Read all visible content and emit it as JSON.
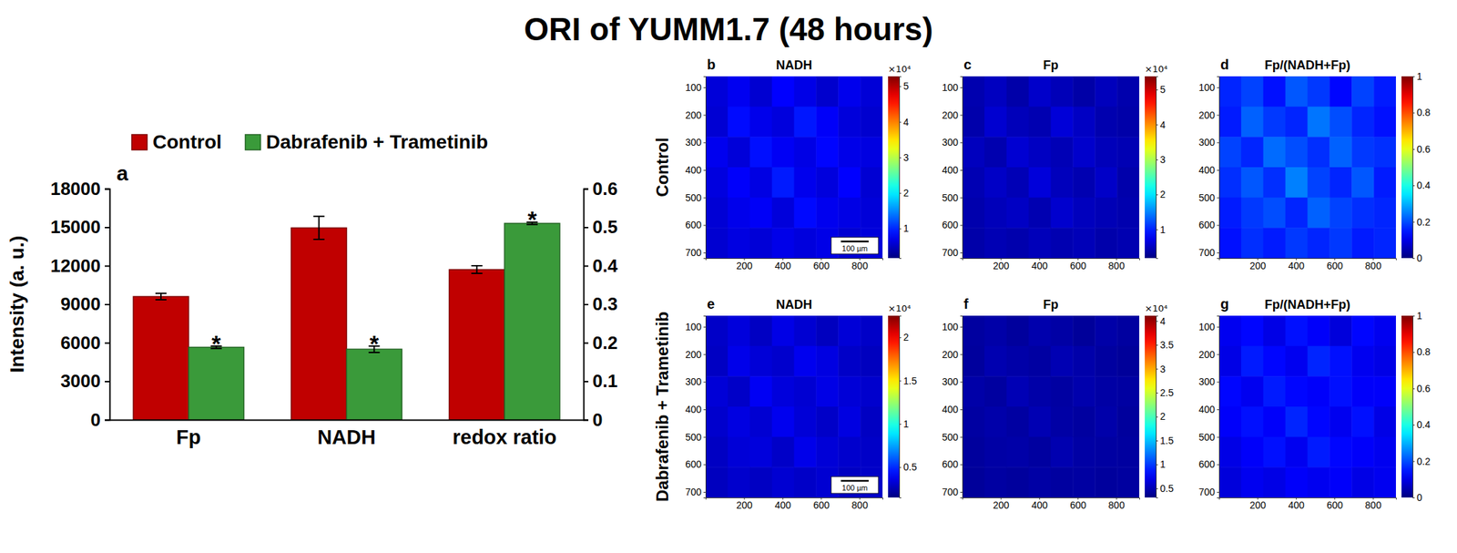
{
  "title": "ORI of YUMM1.7  (48 hours)",
  "chart_data": [
    {
      "type": "bar",
      "panel": "a",
      "categories": [
        "Fp",
        "NADH",
        "redox ratio"
      ],
      "y_label": "Intensity (a. u.)",
      "ylim": [
        0,
        18000
      ],
      "yticks": [
        0,
        3000,
        6000,
        9000,
        12000,
        15000,
        18000
      ],
      "y2lim": [
        0,
        0.6
      ],
      "y2ticks": [
        0,
        0.1,
        0.2,
        0.3,
        0.4,
        0.5,
        0.6
      ],
      "legend": "top",
      "series": [
        {
          "name": "Control",
          "color": "#c00000",
          "axis": [
            "y",
            "y",
            "y2"
          ],
          "values": [
            9600,
            14950,
            0.39
          ],
          "errors": [
            250,
            900,
            0.01
          ]
        },
        {
          "name": "Dabrafenib + Trametinib",
          "color": "#3a9a3a",
          "axis": [
            "y",
            "y",
            "y2"
          ],
          "values": [
            5650,
            5500,
            0.51
          ],
          "errors": [
            100,
            250,
            0.003
          ],
          "significance_labels": [
            "*",
            "*",
            "*"
          ]
        }
      ]
    },
    {
      "type": "heatmap",
      "panel": "b",
      "title": "NADH",
      "row_label": "Control",
      "annotation": "100 µm",
      "xlim": [
        0,
        920
      ],
      "xticks": [
        200,
        400,
        600,
        800
      ],
      "ylim": [
        720,
        60
      ],
      "yticks": [
        100,
        200,
        300,
        400,
        500,
        600,
        700
      ],
      "cells": [
        [
          6200,
          7400,
          5800,
          8100,
          6900,
          5600,
          7200,
          6100
        ],
        [
          5900,
          8600,
          7100,
          6400,
          9200,
          7800,
          6300,
          5700
        ],
        [
          7300,
          6200,
          8800,
          7600,
          6800,
          8300,
          7000,
          6600
        ],
        [
          6500,
          7900,
          6700,
          9400,
          7200,
          6400,
          8100,
          5900
        ],
        [
          6000,
          7100,
          7700,
          6300,
          8500,
          7300,
          6800,
          6200
        ],
        [
          5800,
          6600,
          6100,
          7000,
          6400,
          6900,
          5900,
          6300
        ]
      ],
      "colorbar": {
        "range": [
          1700,
          52800
        ],
        "scale_label": "×10⁴",
        "ticks": [
          {
            "value": 10000,
            "label": "1"
          },
          {
            "value": 20000,
            "label": "2"
          },
          {
            "value": 30000,
            "label": "3"
          },
          {
            "value": 40000,
            "label": "4"
          },
          {
            "value": 50000,
            "label": "5"
          }
        ]
      }
    },
    {
      "type": "heatmap",
      "panel": "c",
      "title": "Fp",
      "xlim": [
        0,
        920
      ],
      "xticks": [
        200,
        400,
        600,
        800
      ],
      "ylim": [
        720,
        60
      ],
      "yticks": [
        100,
        200,
        300,
        400,
        500,
        600,
        700
      ],
      "cells": [
        [
          4200,
          5100,
          3900,
          5600,
          4700,
          3800,
          4900,
          4100
        ],
        [
          4000,
          5900,
          4800,
          4300,
          6300,
          5300,
          4200,
          3900
        ],
        [
          5000,
          4200,
          6000,
          5200,
          4600,
          5700,
          4800,
          4500
        ],
        [
          4400,
          5400,
          4600,
          6400,
          4900,
          4300,
          5500,
          4000
        ],
        [
          4100,
          4800,
          5300,
          4300,
          5800,
          5000,
          4600,
          4200
        ],
        [
          3900,
          4500,
          4100,
          4800,
          4300,
          4700,
          4000,
          4300
        ]
      ],
      "colorbar": {
        "range": [
          1800,
          53800
        ],
        "scale_label": "×10⁴",
        "ticks": [
          {
            "value": 10000,
            "label": "1"
          },
          {
            "value": 20000,
            "label": "2"
          },
          {
            "value": 30000,
            "label": "3"
          },
          {
            "value": 40000,
            "label": "4"
          },
          {
            "value": 50000,
            "label": "5"
          }
        ]
      }
    },
    {
      "type": "heatmap",
      "panel": "d",
      "title": "Fp/(NADH+Fp)",
      "xlim": [
        0,
        920
      ],
      "xticks": [
        200,
        400,
        600,
        800
      ],
      "ylim": [
        720,
        60
      ],
      "yticks": [
        100,
        200,
        300,
        400,
        500,
        600,
        700
      ],
      "cells": [
        [
          0.16,
          0.19,
          0.14,
          0.21,
          0.18,
          0.13,
          0.19,
          0.15
        ],
        [
          0.15,
          0.22,
          0.18,
          0.16,
          0.24,
          0.2,
          0.16,
          0.14
        ],
        [
          0.19,
          0.16,
          0.23,
          0.2,
          0.17,
          0.22,
          0.18,
          0.17
        ],
        [
          0.17,
          0.21,
          0.17,
          0.25,
          0.19,
          0.16,
          0.21,
          0.15
        ],
        [
          0.15,
          0.18,
          0.2,
          0.16,
          0.22,
          0.19,
          0.17,
          0.16
        ],
        [
          0.14,
          0.17,
          0.15,
          0.18,
          0.16,
          0.18,
          0.15,
          0.16
        ]
      ],
      "colorbar": {
        "range": [
          0,
          1
        ],
        "ticks": [
          0,
          0.2,
          0.4,
          0.6,
          0.8,
          1
        ]
      }
    },
    {
      "type": "heatmap",
      "panel": "e",
      "title": "NADH",
      "row_label": "Dabrafenib + Trametinib",
      "annotation": "100 µm",
      "xlim": [
        0,
        920
      ],
      "xticks": [
        200,
        400,
        600,
        800
      ],
      "ylim": [
        720,
        60
      ],
      "yticks": [
        100,
        200,
        300,
        400,
        500,
        600,
        700
      ],
      "cells": [
        [
          3000,
          3400,
          2900,
          3600,
          3200,
          2800,
          3300,
          3000
        ],
        [
          2900,
          3700,
          3300,
          3100,
          3800,
          3500,
          3000,
          2800
        ],
        [
          3300,
          3000,
          3900,
          3400,
          3200,
          3600,
          3300,
          3100
        ],
        [
          3100,
          3500,
          3200,
          3800,
          3300,
          3000,
          3500,
          2900
        ],
        [
          2900,
          3300,
          3400,
          3000,
          3700,
          3300,
          3100,
          3000
        ],
        [
          2800,
          3100,
          2900,
          3200,
          3000,
          3200,
          2900,
          3000
        ]
      ],
      "colorbar": {
        "range": [
          1500,
          22500
        ],
        "scale_label": "×10⁴",
        "ticks": [
          {
            "value": 5000,
            "label": "0.5"
          },
          {
            "value": 10000,
            "label": "1"
          },
          {
            "value": 15000,
            "label": "1.5"
          },
          {
            "value": 20000,
            "label": "2"
          }
        ]
      }
    },
    {
      "type": "heatmap",
      "panel": "f",
      "title": "Fp",
      "xlim": [
        0,
        920
      ],
      "xticks": [
        200,
        400,
        600,
        800
      ],
      "ylim": [
        720,
        60
      ],
      "yticks": [
        100,
        200,
        300,
        400,
        500,
        600,
        700
      ],
      "cells": [
        [
          4300,
          4600,
          4200,
          4800,
          4500,
          4100,
          4600,
          4300
        ],
        [
          4200,
          4900,
          4600,
          4400,
          5000,
          4700,
          4300,
          4100
        ],
        [
          4600,
          4300,
          5100,
          4600,
          4400,
          4800,
          4500,
          4400
        ],
        [
          4400,
          4700,
          4400,
          5000,
          4500,
          4300,
          4700,
          4200
        ],
        [
          4200,
          4500,
          4600,
          4300,
          4900,
          4500,
          4400,
          4300
        ],
        [
          4100,
          4400,
          4200,
          4500,
          4300,
          4400,
          4200,
          4300
        ]
      ],
      "colorbar": {
        "range": [
          3100,
          41100
        ],
        "scale_label": "×10⁴",
        "ticks": [
          {
            "value": 5000,
            "label": "0.5"
          },
          {
            "value": 10000,
            "label": "1"
          },
          {
            "value": 15000,
            "label": "1.5"
          },
          {
            "value": 20000,
            "label": "2"
          },
          {
            "value": 25000,
            "label": "2.5"
          },
          {
            "value": 30000,
            "label": "3"
          },
          {
            "value": 35000,
            "label": "3.5"
          },
          {
            "value": 40000,
            "label": "4"
          }
        ]
      }
    },
    {
      "type": "heatmap",
      "panel": "g",
      "title": "Fp/(NADH+Fp)",
      "xlim": [
        0,
        920
      ],
      "xticks": [
        200,
        400,
        600,
        800
      ],
      "ylim": [
        720,
        60
      ],
      "yticks": [
        100,
        200,
        300,
        400,
        500,
        600,
        700
      ],
      "cells": [
        [
          0.11,
          0.13,
          0.1,
          0.14,
          0.12,
          0.09,
          0.13,
          0.11
        ],
        [
          0.1,
          0.15,
          0.13,
          0.11,
          0.16,
          0.14,
          0.11,
          0.1
        ],
        [
          0.13,
          0.11,
          0.15,
          0.13,
          0.12,
          0.14,
          0.12,
          0.12
        ],
        [
          0.12,
          0.14,
          0.12,
          0.16,
          0.13,
          0.11,
          0.14,
          0.1
        ],
        [
          0.1,
          0.12,
          0.14,
          0.11,
          0.15,
          0.13,
          0.12,
          0.11
        ],
        [
          0.09,
          0.11,
          0.1,
          0.12,
          0.11,
          0.12,
          0.1,
          0.11
        ]
      ],
      "colorbar": {
        "range": [
          0,
          1
        ],
        "ticks": [
          0,
          0.2,
          0.4,
          0.6,
          0.8,
          1
        ]
      }
    }
  ]
}
